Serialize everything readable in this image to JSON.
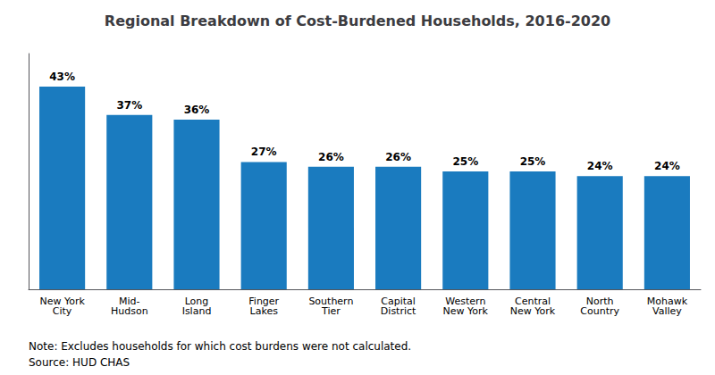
{
  "chart_data": {
    "type": "bar",
    "title": "Regional Breakdown of Cost-Burdened Households, 2016-2020",
    "categories": [
      "New York\nCity",
      "Mid-\nHudson",
      "Long\nIsland",
      "Finger\nLakes",
      "Southern\nTier",
      "Capital\nDistrict",
      "Western\nNew York",
      "Central\nNew York",
      "North\nCountry",
      "Mohawk\nValley"
    ],
    "values": [
      43,
      37,
      36,
      27,
      26,
      26,
      25,
      25,
      24,
      24
    ],
    "value_labels": [
      "43%",
      "37%",
      "36%",
      "27%",
      "26%",
      "26%",
      "25%",
      "25%",
      "24%",
      "24%"
    ],
    "color": "#1a7bbf",
    "ylim": [
      0,
      50
    ],
    "grid": false,
    "data_labels": true,
    "tick_labels": "x",
    "annotations": [
      "Note: Excludes households for which cost burdens were not calculated.",
      "Source: HUD CHAS"
    ]
  }
}
